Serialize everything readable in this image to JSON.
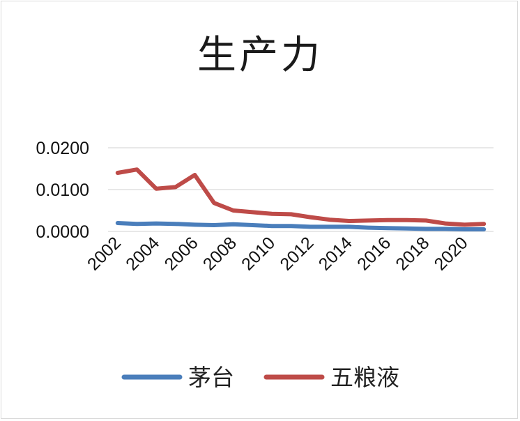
{
  "chart_data": {
    "type": "line",
    "title": "生产力",
    "xlabel": "",
    "ylabel": "",
    "x": [
      2002,
      2003,
      2004,
      2005,
      2006,
      2007,
      2008,
      2009,
      2010,
      2011,
      2012,
      2013,
      2014,
      2015,
      2016,
      2017,
      2018,
      2019,
      2020,
      2021
    ],
    "x_tick_labels": [
      "2002",
      "2004",
      "2006",
      "2008",
      "2010",
      "2012",
      "2014",
      "2016",
      "2018",
      "2020"
    ],
    "y_tick_labels": [
      "0.0000",
      "0.0100",
      "0.0200"
    ],
    "ylim": [
      0,
      0.02
    ],
    "grid": true,
    "legend_position": "bottom",
    "series": [
      {
        "name": "茅台",
        "color": "#4a7ebb",
        "values": [
          0.002,
          0.0018,
          0.0019,
          0.0018,
          0.0016,
          0.0015,
          0.0017,
          0.0015,
          0.0013,
          0.0013,
          0.0011,
          0.0011,
          0.0011,
          0.0009,
          0.0008,
          0.0007,
          0.0006,
          0.0006,
          0.0005,
          0.0005
        ]
      },
      {
        "name": "五粮液",
        "color": "#be4b48",
        "values": [
          0.014,
          0.0148,
          0.0102,
          0.0106,
          0.0135,
          0.0068,
          0.005,
          0.0046,
          0.0042,
          0.0041,
          0.0034,
          0.0028,
          0.0025,
          0.0026,
          0.0027,
          0.0027,
          0.0026,
          0.0019,
          0.0016,
          0.0018
        ]
      }
    ]
  }
}
